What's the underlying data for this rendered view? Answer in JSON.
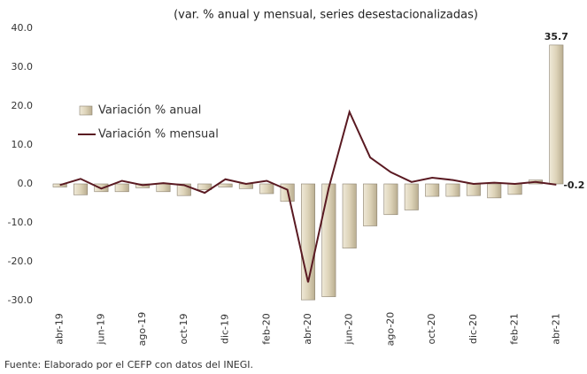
{
  "chart_data": {
    "type": "combo",
    "title": "(var. % anual y mensual, series desestacionalizadas)",
    "source": "Fuente: Elaborado por el CEFP con datos del INEGI.",
    "categories": [
      "abr-19",
      null,
      "jun-19",
      null,
      "ago-19",
      null,
      "oct-19",
      null,
      "dic-19",
      null,
      "feb-20",
      null,
      "abr-20",
      null,
      "jun-20",
      null,
      "ago-20",
      null,
      "oct-20",
      null,
      "dic-20",
      null,
      "feb-21",
      null,
      "abr-21"
    ],
    "series": [
      {
        "name": "Variación % anual",
        "type": "bar",
        "color": "#d9cfb2",
        "stroke": "#8c8270",
        "values": [
          -0.8,
          -2.8,
          -2.0,
          -2.0,
          -1.0,
          -2.0,
          -3.0,
          -1.5,
          -0.8,
          -1.2,
          -2.5,
          -4.5,
          -29.8,
          -29.0,
          -16.5,
          -10.8,
          -7.9,
          -6.7,
          -3.2,
          -3.2,
          -3.0,
          -3.6,
          -2.7,
          1.0,
          35.7
        ],
        "value_labels": [
          null,
          null,
          null,
          null,
          null,
          null,
          null,
          null,
          null,
          null,
          null,
          null,
          null,
          null,
          null,
          null,
          null,
          null,
          null,
          null,
          null,
          null,
          null,
          null,
          "35.7"
        ]
      },
      {
        "name": "Variación % mensual",
        "type": "line",
        "color": "#5a1a22",
        "values": [
          -0.3,
          1.3,
          -1.2,
          0.8,
          -0.3,
          0.2,
          -0.3,
          -2.3,
          1.2,
          0.0,
          0.8,
          -1.5,
          -25.3,
          -1.0,
          18.5,
          6.8,
          3.0,
          0.5,
          1.6,
          1.0,
          0.0,
          0.3,
          0.0,
          0.5,
          -0.2
        ],
        "value_labels": [
          null,
          null,
          null,
          null,
          null,
          null,
          null,
          null,
          null,
          null,
          null,
          null,
          null,
          null,
          null,
          null,
          null,
          null,
          null,
          null,
          null,
          null,
          null,
          null,
          "-0.2"
        ]
      }
    ],
    "ylim": [
      -30,
      40
    ],
    "yticks": [
      {
        "value": -30,
        "label": "-30.0"
      },
      {
        "value": -20,
        "label": "-20.0"
      },
      {
        "value": -10,
        "label": "-10.0"
      },
      {
        "value": 0,
        "label": "0.0"
      },
      {
        "value": 10,
        "label": "10.0"
      },
      {
        "value": 20,
        "label": "20.0"
      },
      {
        "value": 30,
        "label": "30.0"
      },
      {
        "value": 40,
        "label": "40.0"
      }
    ],
    "grid": false,
    "legend": "upper-left"
  }
}
